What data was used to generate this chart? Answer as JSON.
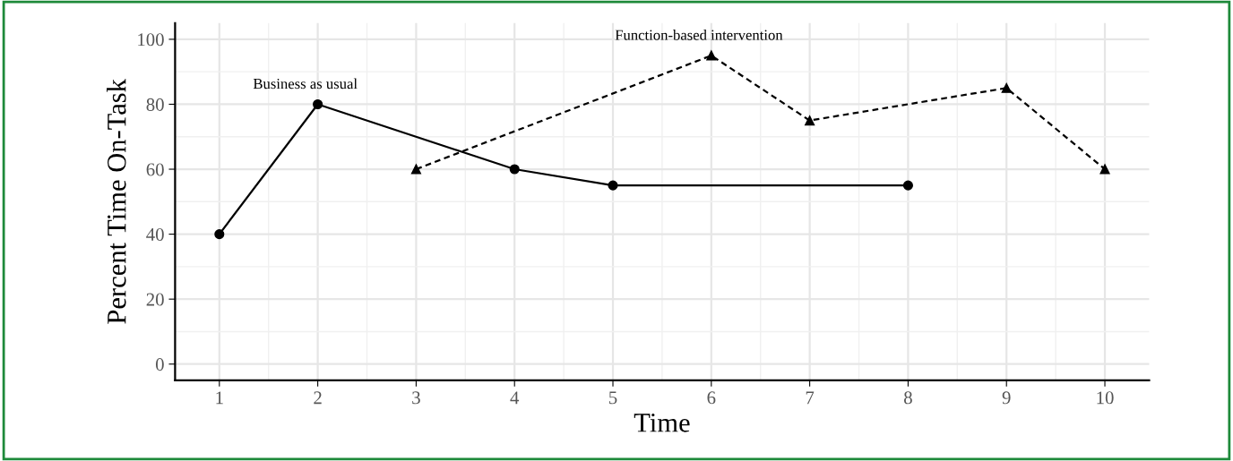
{
  "chart_data": {
    "type": "line",
    "xlabel": "Time",
    "ylabel": "Percent Time On-Task",
    "xlim": [
      0.55,
      10.45
    ],
    "ylim": [
      -5,
      105
    ],
    "xticks": [
      1,
      2,
      3,
      4,
      5,
      6,
      7,
      8,
      9,
      10
    ],
    "yticks": [
      0,
      20,
      40,
      60,
      80,
      100
    ],
    "grid": true,
    "series": [
      {
        "name": "Business as usual",
        "color": "#000000",
        "x": [
          1,
          2,
          4,
          5,
          8
        ],
        "values": [
          40,
          80,
          60,
          55,
          55
        ],
        "marker": "circle",
        "line_style": "solid"
      },
      {
        "name": "Function-based intervention",
        "color": "#000000",
        "x": [
          3,
          6,
          7,
          9,
          10
        ],
        "values": [
          60,
          95,
          75,
          85,
          60
        ],
        "marker": "triangle",
        "line_style": "dashed"
      }
    ]
  }
}
